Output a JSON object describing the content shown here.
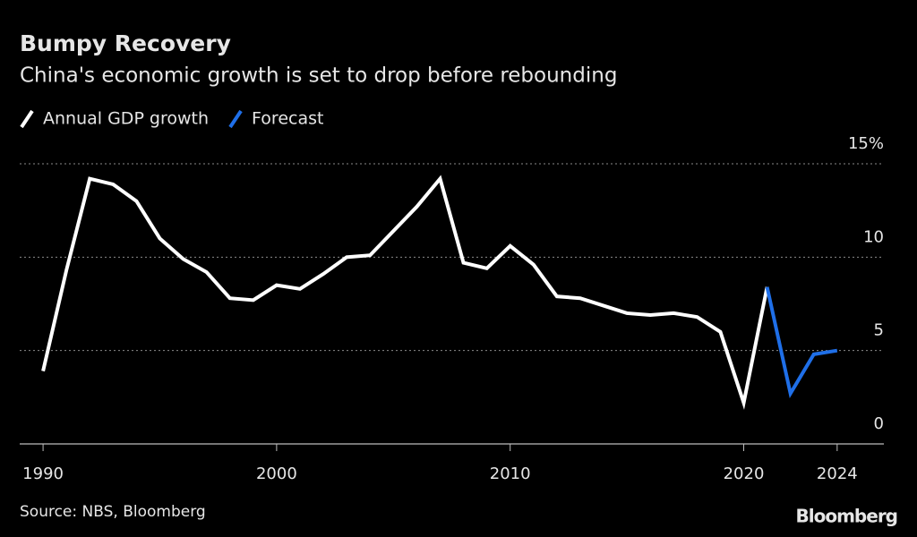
{
  "chart_data": {
    "type": "line",
    "title": "Bumpy Recovery",
    "subtitle": "China's economic growth is set to drop before rebounding",
    "source": "Source: NBS, Bloomberg",
    "brand": "Bloomberg",
    "x": [
      1990,
      1991,
      1992,
      1993,
      1994,
      1995,
      1996,
      1997,
      1998,
      1999,
      2000,
      2001,
      2002,
      2003,
      2004,
      2005,
      2006,
      2007,
      2008,
      2009,
      2010,
      2011,
      2012,
      2013,
      2014,
      2015,
      2016,
      2017,
      2018,
      2019,
      2020,
      2021,
      2022,
      2023,
      2024
    ],
    "series": [
      {
        "name": "Annual GDP growth",
        "color": "#ffffff",
        "values": [
          3.9,
          9.3,
          14.2,
          13.9,
          13.0,
          11.0,
          9.9,
          9.2,
          7.8,
          7.7,
          8.5,
          8.3,
          9.1,
          10.0,
          10.1,
          11.4,
          12.7,
          14.2,
          9.7,
          9.4,
          10.6,
          9.6,
          7.9,
          7.8,
          7.4,
          7.0,
          6.9,
          7.0,
          6.8,
          6.0,
          2.2,
          8.4,
          null,
          null,
          null
        ]
      },
      {
        "name": "Forecast",
        "color": "#1f6fe8",
        "values": [
          null,
          null,
          null,
          null,
          null,
          null,
          null,
          null,
          null,
          null,
          null,
          null,
          null,
          null,
          null,
          null,
          null,
          null,
          null,
          null,
          null,
          null,
          null,
          null,
          null,
          null,
          null,
          null,
          null,
          null,
          null,
          8.4,
          2.7,
          4.8,
          5.0
        ]
      }
    ],
    "xlim": [
      1989,
      2026
    ],
    "xticks": [
      1990,
      2000,
      2010,
      2020,
      2024
    ],
    "ylim": [
      0,
      15
    ],
    "yticks": [
      0,
      5,
      10,
      {
        "value": 15,
        "label": "15%"
      }
    ],
    "grid": true
  }
}
